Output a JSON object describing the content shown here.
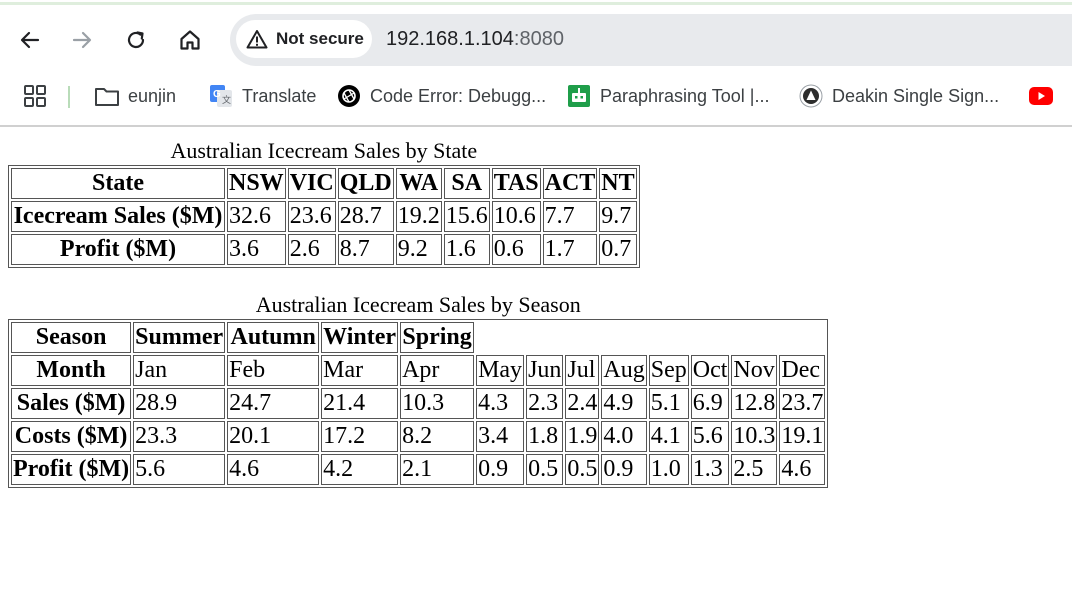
{
  "browser": {
    "security_label": "Not secure",
    "url_host": "192.168.1.104",
    "url_port": ":8080",
    "bookmarks": [
      {
        "label": "eunjin",
        "icon": "folder-icon"
      },
      {
        "label": "Translate",
        "icon": "google-translate-icon"
      },
      {
        "label": "Code Error: Debugg...",
        "icon": "openai-icon"
      },
      {
        "label": "Paraphrasing Tool |...",
        "icon": "robot-icon"
      },
      {
        "label": "Deakin Single Sign...",
        "icon": "deakin-icon"
      }
    ]
  },
  "state_table": {
    "caption": "Australian Icecream Sales by State",
    "header_label": "State",
    "states": [
      "NSW",
      "VIC",
      "QLD",
      "WA",
      "SA",
      "TAS",
      "ACT",
      "NT"
    ],
    "rows": [
      {
        "label": "Icecream Sales ($M)",
        "values": [
          "32.6",
          "23.6",
          "28.7",
          "19.2",
          "15.6",
          "10.6",
          "7.7",
          "9.7"
        ]
      },
      {
        "label": "Profit ($M)",
        "values": [
          "3.6",
          "2.6",
          "8.7",
          "9.2",
          "1.6",
          "0.6",
          "1.7",
          "0.7"
        ]
      }
    ]
  },
  "season_table": {
    "caption": "Australian Icecream Sales by Season",
    "season_label": "Season",
    "seasons": [
      "Summer",
      "Autumn",
      "Winter",
      "Spring"
    ],
    "month_label": "Month",
    "months": [
      "Jan",
      "Feb",
      "Mar",
      "Apr",
      "May",
      "Jun",
      "Jul",
      "Aug",
      "Sep",
      "Oct",
      "Nov",
      "Dec"
    ],
    "rows": [
      {
        "label": "Sales ($M)",
        "values": [
          "28.9",
          "24.7",
          "21.4",
          "10.3",
          "4.3",
          "2.3",
          "2.4",
          "4.9",
          "5.1",
          "6.9",
          "12.8",
          "23.7"
        ]
      },
      {
        "label": "Costs ($M)",
        "values": [
          "23.3",
          "20.1",
          "17.2",
          "8.2",
          "3.4",
          "1.8",
          "1.9",
          "4.0",
          "4.1",
          "5.6",
          "10.3",
          "19.1"
        ]
      },
      {
        "label": "Profit ($M)",
        "values": [
          "5.6",
          "4.6",
          "4.2",
          "2.1",
          "0.9",
          "0.5",
          "0.5",
          "0.9",
          "1.0",
          "1.3",
          "2.5",
          "4.6"
        ]
      }
    ]
  }
}
